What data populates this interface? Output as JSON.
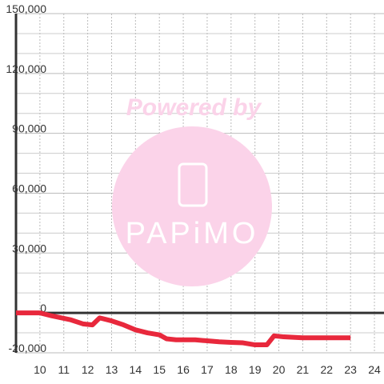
{
  "chart_data": {
    "type": "line",
    "x": [
      9,
      10,
      10.5,
      11.3,
      11.8,
      12.2,
      12.5,
      13,
      13.5,
      14,
      14.5,
      15,
      15.3,
      15.7,
      16.5,
      17,
      17.5,
      18,
      18.5,
      19,
      19.5,
      19.8,
      20.2,
      21,
      22,
      23
    ],
    "series": [
      {
        "color": "#e8283c",
        "values": [
          0,
          0,
          -1500,
          -3500,
          -5500,
          -6000,
          -2500,
          -4000,
          -6000,
          -8500,
          -10000,
          -11000,
          -13000,
          -13500,
          -13500,
          -14000,
          -14500,
          -14800,
          -15000,
          -16000,
          -16000,
          -11500,
          -12000,
          -12500,
          -12500,
          -12500
        ]
      }
    ],
    "xlim": [
      9,
      24.4
    ],
    "xticks": [
      10,
      11,
      12,
      13,
      14,
      15,
      16,
      17,
      18,
      19,
      20,
      21,
      22,
      23,
      24
    ],
    "ylim": [
      -20000,
      150000
    ],
    "yticks": [
      {
        "value": -20000,
        "label": "-20,000"
      },
      0,
      {
        "value": 30000,
        "label": "30,000"
      },
      {
        "value": 60000,
        "label": "60,000"
      },
      {
        "value": 90000,
        "label": "90,000"
      },
      {
        "value": 120000,
        "label": "120,000"
      },
      {
        "value": 150000,
        "label": "150,000"
      }
    ],
    "y_minor_ticks": [
      -10000,
      10000,
      20000,
      40000,
      50000,
      70000,
      80000,
      100000,
      110000,
      130000,
      140000
    ],
    "grid": true,
    "watermark": {
      "text": "Powered by",
      "logo": "PAPiMO"
    }
  }
}
